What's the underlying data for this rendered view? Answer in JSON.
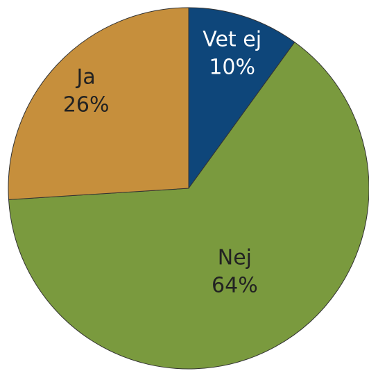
{
  "chart_data": {
    "type": "pie",
    "categories": [
      "Vet ej",
      "Nej",
      "Ja"
    ],
    "values": [
      10,
      64,
      26
    ],
    "value_labels": [
      "10%",
      "64%",
      "26%"
    ],
    "colors": [
      "#0e467a",
      "#7a9a3e",
      "#c68f3c"
    ]
  }
}
